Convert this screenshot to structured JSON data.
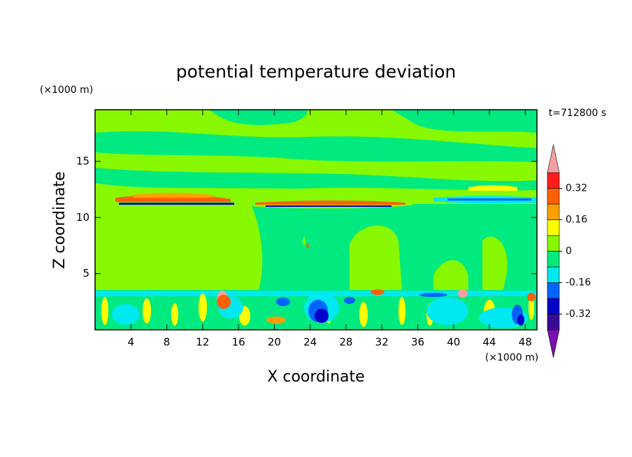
{
  "chart_data": {
    "type": "contour",
    "title": "potential temperature deviation",
    "x_label": "X coordinate",
    "y_label": "Z coordinate",
    "x_unit": "(×1000 m)",
    "y_unit": "(×1000 m)",
    "annotation": "t=712800 s",
    "xlim": [
      0,
      49.3
    ],
    "xticks": [
      4,
      8,
      12,
      16,
      20,
      24,
      28,
      32,
      36,
      40,
      44,
      48
    ],
    "ylim": [
      0,
      19.6
    ],
    "yticks": [
      5,
      10,
      15
    ],
    "levels": [
      -0.4,
      -0.32,
      -0.24,
      -0.16,
      -0.08,
      0,
      0.08,
      0.16,
      0.24,
      0.32,
      0.4
    ],
    "colors": [
      "#7a10b0",
      "#3a0a96",
      "#0000c8",
      "#0064ff",
      "#00e8f0",
      "#00ea80",
      "#88f800",
      "#ffff00",
      "#ffa000",
      "#ff6000",
      "#ff1c1c",
      "#f4a0a0"
    ],
    "colorbar_ticks": [
      0.32,
      0.16,
      0,
      -0.16,
      -0.32
    ]
  }
}
